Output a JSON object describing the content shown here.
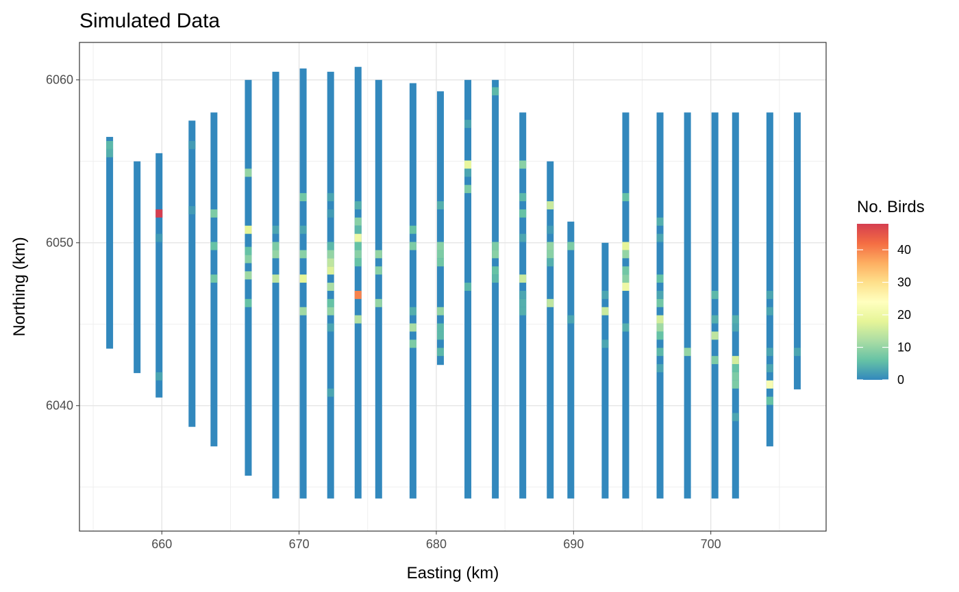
{
  "chart_data": {
    "type": "heatmap",
    "title": "Simulated Data",
    "xlabel": "Easting (km)",
    "ylabel": "Northing (km)",
    "xlim": [
      654.0,
      708.4
    ],
    "ylim": [
      6032.3,
      6062.3
    ],
    "x_ticks": [
      660,
      670,
      680,
      690,
      700
    ],
    "y_ticks": [
      6040,
      6050,
      6060
    ],
    "grid": true,
    "legend": {
      "title": "No. Birds",
      "position": "right",
      "ticks": [
        0,
        10,
        20,
        30,
        40
      ],
      "range": [
        0,
        48
      ]
    },
    "colorscale": [
      "#3288BD",
      "#66C2A5",
      "#ABDDA4",
      "#E6F598",
      "#FFFFBF",
      "#FEE08B",
      "#FDAE61",
      "#F46D43",
      "#D53E4F"
    ],
    "cell_height": 0.5,
    "transects": [
      {
        "x": 656.2,
        "y_start": 6043.5,
        "y_end": 6056.5,
        "counts": [
          [
            6055.5,
            4
          ],
          [
            6056.0,
            5
          ]
        ]
      },
      {
        "x": 658.2,
        "y_start": 6042.0,
        "y_end": 6055.0,
        "counts": []
      },
      {
        "x": 659.8,
        "y_start": 6040.5,
        "y_end": 6055.5,
        "counts": [
          [
            6051.8,
            48
          ],
          [
            6050.3,
            2
          ],
          [
            6041.8,
            3
          ]
        ]
      },
      {
        "x": 662.2,
        "y_start": 6038.7,
        "y_end": 6057.5,
        "counts": [
          [
            6056.0,
            2
          ],
          [
            6052.0,
            2
          ]
        ]
      },
      {
        "x": 663.8,
        "y_start": 6037.5,
        "y_end": 6058.0,
        "counts": [
          [
            6051.8,
            8
          ],
          [
            6049.8,
            6
          ],
          [
            6047.8,
            7
          ]
        ]
      },
      {
        "x": 666.3,
        "y_start": 6035.7,
        "y_end": 6060.0,
        "counts": [
          [
            6054.3,
            10
          ],
          [
            6050.8,
            18
          ],
          [
            6049.5,
            6
          ],
          [
            6049.0,
            9
          ],
          [
            6048.0,
            11
          ],
          [
            6046.3,
            6
          ]
        ]
      },
      {
        "x": 668.3,
        "y_start": 6034.3,
        "y_end": 6060.5,
        "counts": [
          [
            6050.8,
            3
          ],
          [
            6049.8,
            8
          ],
          [
            6049.3,
            10
          ],
          [
            6047.8,
            14
          ]
        ]
      },
      {
        "x": 670.3,
        "y_start": 6034.3,
        "y_end": 6060.7,
        "counts": [
          [
            6052.8,
            7
          ],
          [
            6050.8,
            3
          ],
          [
            6049.3,
            9
          ],
          [
            6047.8,
            18
          ],
          [
            6045.8,
            11
          ]
        ]
      },
      {
        "x": 672.3,
        "y_start": 6034.3,
        "y_end": 6060.5,
        "counts": [
          [
            6052.8,
            3
          ],
          [
            6051.8,
            2
          ],
          [
            6049.8,
            5
          ],
          [
            6049.3,
            10
          ],
          [
            6048.8,
            14
          ],
          [
            6048.3,
            17
          ],
          [
            6047.3,
            12
          ],
          [
            6046.3,
            6
          ],
          [
            6045.8,
            10
          ],
          [
            6044.8,
            3
          ],
          [
            6040.8,
            3
          ]
        ]
      },
      {
        "x": 674.3,
        "y_start": 6034.3,
        "y_end": 6060.8,
        "counts": [
          [
            6052.3,
            4
          ],
          [
            6051.3,
            9
          ],
          [
            6050.8,
            5
          ],
          [
            6050.3,
            20
          ],
          [
            6049.8,
            6
          ],
          [
            6049.3,
            9
          ],
          [
            6048.8,
            6
          ],
          [
            6046.8,
            40
          ],
          [
            6045.3,
            13
          ]
        ]
      },
      {
        "x": 675.8,
        "y_start": 6034.3,
        "y_end": 6060.0,
        "counts": [
          [
            6049.3,
            10
          ],
          [
            6048.3,
            9
          ],
          [
            6046.3,
            10
          ]
        ]
      },
      {
        "x": 678.3,
        "y_start": 6034.3,
        "y_end": 6059.8,
        "counts": [
          [
            6050.8,
            6
          ],
          [
            6049.8,
            8
          ],
          [
            6045.8,
            4
          ],
          [
            6044.8,
            12
          ],
          [
            6043.8,
            8
          ]
        ]
      },
      {
        "x": 680.3,
        "y_start": 6042.5,
        "y_end": 6059.3,
        "counts": [
          [
            6052.3,
            4
          ],
          [
            6049.8,
            9
          ],
          [
            6049.3,
            8
          ],
          [
            6048.8,
            7
          ],
          [
            6045.8,
            10
          ],
          [
            6044.8,
            5
          ],
          [
            6044.3,
            5
          ],
          [
            6043.3,
            5
          ]
        ]
      },
      {
        "x": 682.3,
        "y_start": 6034.3,
        "y_end": 6060.0,
        "counts": [
          [
            6057.3,
            3
          ],
          [
            6054.8,
            19
          ],
          [
            6054.3,
            3
          ],
          [
            6053.3,
            8
          ],
          [
            6047.3,
            5
          ]
        ]
      },
      {
        "x": 684.3,
        "y_start": 6034.3,
        "y_end": 6060.0,
        "counts": [
          [
            6059.3,
            5
          ],
          [
            6049.8,
            8
          ],
          [
            6049.3,
            9
          ],
          [
            6048.3,
            6
          ],
          [
            6047.8,
            5
          ]
        ]
      },
      {
        "x": 686.3,
        "y_start": 6034.3,
        "y_end": 6058.0,
        "counts": [
          [
            6054.8,
            9
          ],
          [
            6052.8,
            5
          ],
          [
            6051.8,
            6
          ],
          [
            6050.3,
            3
          ],
          [
            6047.8,
            15
          ],
          [
            6046.8,
            3
          ],
          [
            6046.3,
            4
          ],
          [
            6045.8,
            4
          ]
        ]
      },
      {
        "x": 688.3,
        "y_start": 6034.3,
        "y_end": 6055.0,
        "counts": [
          [
            6052.3,
            15
          ],
          [
            6050.8,
            2
          ],
          [
            6049.8,
            10
          ],
          [
            6049.3,
            9
          ],
          [
            6048.8,
            4
          ],
          [
            6046.3,
            14
          ]
        ]
      },
      {
        "x": 689.8,
        "y_start": 6034.3,
        "y_end": 6051.3,
        "counts": [
          [
            6049.8,
            8
          ],
          [
            6045.3,
            3
          ]
        ]
      },
      {
        "x": 692.3,
        "y_start": 6034.3,
        "y_end": 6050.0,
        "counts": [
          [
            6046.8,
            3
          ],
          [
            6045.8,
            15
          ],
          [
            6043.8,
            3
          ]
        ]
      },
      {
        "x": 693.8,
        "y_start": 6034.3,
        "y_end": 6058.0,
        "counts": [
          [
            6052.8,
            6
          ],
          [
            6049.8,
            18
          ],
          [
            6049.3,
            10
          ],
          [
            6048.3,
            7
          ],
          [
            6047.8,
            9
          ],
          [
            6047.3,
            20
          ],
          [
            6044.8,
            4
          ]
        ]
      },
      {
        "x": 696.3,
        "y_start": 6034.3,
        "y_end": 6058.0,
        "counts": [
          [
            6051.3,
            4
          ],
          [
            6050.3,
            3
          ],
          [
            6047.8,
            6
          ],
          [
            6046.8,
            3
          ],
          [
            6046.3,
            7
          ],
          [
            6045.3,
            16
          ],
          [
            6044.8,
            11
          ],
          [
            6044.3,
            6
          ],
          [
            6043.3,
            5
          ],
          [
            6042.3,
            3
          ]
        ]
      },
      {
        "x": 698.3,
        "y_start": 6034.3,
        "y_end": 6058.0,
        "counts": [
          [
            6043.3,
            10
          ]
        ]
      },
      {
        "x": 700.3,
        "y_start": 6034.3,
        "y_end": 6058.0,
        "counts": [
          [
            6046.8,
            5
          ],
          [
            6045.3,
            4
          ],
          [
            6044.3,
            14
          ],
          [
            6042.8,
            8
          ]
        ]
      },
      {
        "x": 701.8,
        "y_start": 6034.3,
        "y_end": 6058.0,
        "counts": [
          [
            6045.3,
            4
          ],
          [
            6044.8,
            3
          ],
          [
            6042.8,
            16
          ],
          [
            6042.3,
            6
          ],
          [
            6041.8,
            8
          ],
          [
            6041.3,
            8
          ],
          [
            6039.3,
            3
          ]
        ]
      },
      {
        "x": 704.3,
        "y_start": 6037.5,
        "y_end": 6058.0,
        "counts": [
          [
            6046.8,
            3
          ],
          [
            6045.8,
            3
          ],
          [
            6043.3,
            3
          ],
          [
            6042.3,
            3
          ],
          [
            6041.3,
            22
          ],
          [
            6040.3,
            6
          ]
        ]
      },
      {
        "x": 706.3,
        "y_start": 6041.0,
        "y_end": 6058.0,
        "counts": [
          [
            6043.3,
            3
          ]
        ]
      }
    ]
  }
}
